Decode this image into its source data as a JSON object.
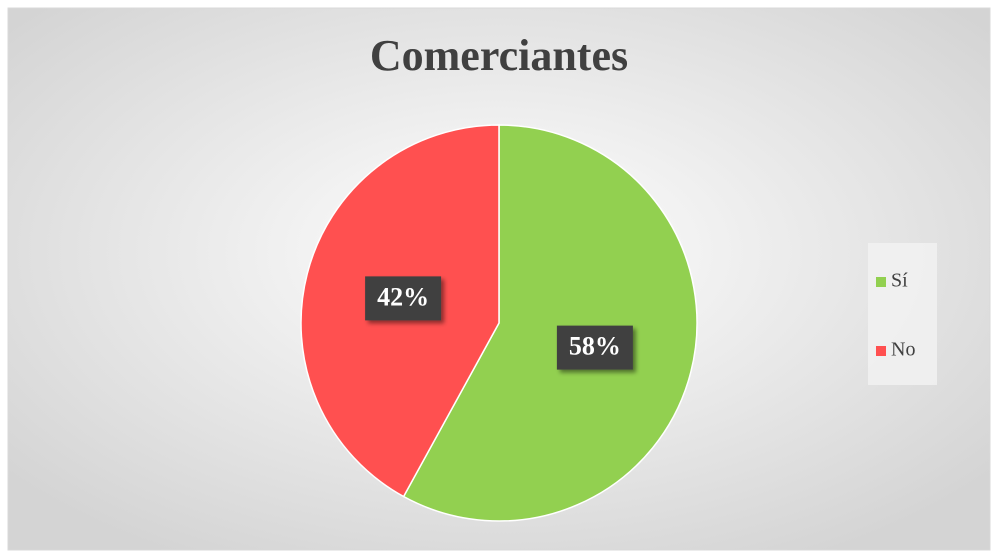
{
  "chart_data": {
    "type": "pie",
    "title": "Comerciantes",
    "categories": [
      "Sí",
      "No"
    ],
    "values": [
      58,
      42
    ],
    "value_labels": [
      "58%",
      "42%"
    ],
    "colors": [
      "#92d050",
      "#ff5050"
    ],
    "legend": "right"
  }
}
